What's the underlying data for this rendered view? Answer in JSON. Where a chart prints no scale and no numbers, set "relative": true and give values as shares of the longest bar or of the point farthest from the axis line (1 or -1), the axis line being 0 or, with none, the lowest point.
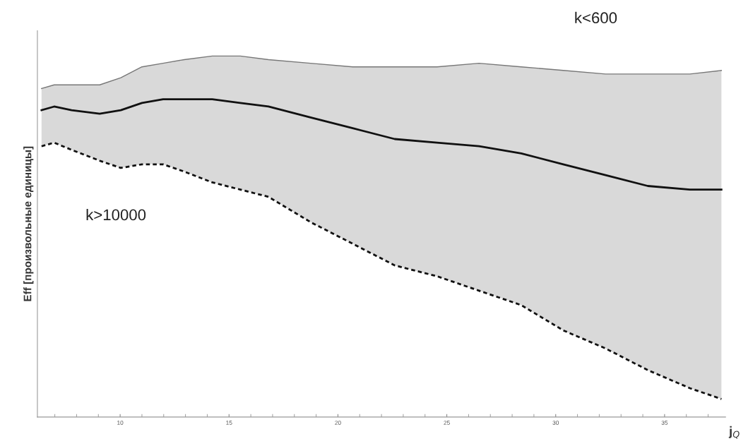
{
  "chart_data": {
    "type": "line",
    "relative": true,
    "xlabel": "j$_{Q}$",
    "ylabel": "Eff [произвольные единицы]",
    "x": [
      6.39,
      6.97,
      7.77,
      9.06,
      10.03,
      11.0,
      11.97,
      12.94,
      14.23,
      15.52,
      16.81,
      18.74,
      20.68,
      22.61,
      24.55,
      26.48,
      28.42,
      30.35,
      32.29,
      34.23,
      36.16,
      37.61
    ],
    "xlim": [
      6.2,
      37.8
    ],
    "xticks": [
      10,
      15,
      20,
      25,
      30,
      35
    ],
    "series": [
      {
        "color": "#111111",
        "line_style": "solid",
        "values": [
          0.85,
          0.86,
          0.85,
          0.84,
          0.85,
          0.87,
          0.88,
          0.88,
          0.88,
          0.87,
          0.86,
          0.83,
          0.8,
          0.77,
          0.76,
          0.75,
          0.73,
          0.7,
          0.67,
          0.64,
          0.63,
          0.63
        ],
        "lower": [
          0.75,
          0.76,
          0.74,
          0.71,
          0.69,
          0.7,
          0.7,
          0.68,
          0.65,
          0.63,
          0.61,
          0.54,
          0.48,
          0.42,
          0.39,
          0.35,
          0.31,
          0.24,
          0.19,
          0.13,
          0.08,
          0.05
        ],
        "upper": [
          0.91,
          0.92,
          0.92,
          0.92,
          0.94,
          0.97,
          0.98,
          0.99,
          1.0,
          1.0,
          0.99,
          0.98,
          0.97,
          0.97,
          0.97,
          0.98,
          0.97,
          0.96,
          0.95,
          0.95,
          0.95,
          0.96
        ]
      },
      {
        "color": "#777777",
        "line_style": "solid",
        "values": [
          0.91,
          0.92,
          0.92,
          0.92,
          0.94,
          0.97,
          0.98,
          0.99,
          1.0,
          1.0,
          0.99,
          0.98,
          0.97,
          0.97,
          0.97,
          0.98,
          0.97,
          0.96,
          0.95,
          0.95,
          0.95,
          0.96
        ]
      },
      {
        "color": "#111111",
        "line_style": "dotted",
        "values": [
          0.75,
          0.76,
          0.74,
          0.71,
          0.69,
          0.7,
          0.7,
          0.68,
          0.65,
          0.63,
          0.61,
          0.54,
          0.48,
          0.42,
          0.39,
          0.35,
          0.31,
          0.24,
          0.19,
          0.13,
          0.08,
          0.05
        ]
      }
    ],
    "annotations": [
      "k<600",
      "k>10000"
    ],
    "grid": false,
    "legend": false
  }
}
